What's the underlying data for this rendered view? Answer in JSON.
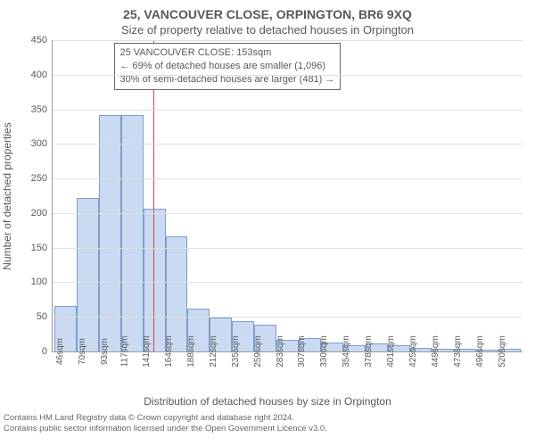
{
  "chart": {
    "type": "histogram",
    "title": "25, VANCOUVER CLOSE, ORPINGTON, BR6 9XQ",
    "subtitle": "Size of property relative to detached houses in Orpington",
    "ylabel": "Number of detached properties",
    "xlabel": "Distribution of detached houses by size in Orpington",
    "ylim": [
      0,
      450
    ],
    "ytick_step": 50,
    "yticks": [
      0,
      50,
      100,
      150,
      200,
      250,
      300,
      350,
      400,
      450
    ],
    "categories": [
      "46sqm",
      "70sqm",
      "93sqm",
      "117sqm",
      "141sqm",
      "164sqm",
      "188sqm",
      "212sqm",
      "235sqm",
      "259sqm",
      "283sqm",
      "307sqm",
      "330sqm",
      "354sqm",
      "378sqm",
      "401sqm",
      "425sqm",
      "449sqm",
      "473sqm",
      "496sqm",
      "520sqm"
    ],
    "values": [
      65,
      220,
      340,
      340,
      205,
      165,
      60,
      48,
      42,
      38,
      15,
      18,
      12,
      8,
      10,
      8,
      4,
      2,
      2,
      1,
      2
    ],
    "bar_fill": "#c9daf2",
    "bar_stroke": "#7f9cc9",
    "grid_color": "#e0e0e0",
    "axis_color": "#999999",
    "background_color": "#ffffff",
    "text_color": "#595959",
    "marker": {
      "value_sqm": 153,
      "color": "#d94040",
      "position_pct": 21.5
    },
    "info_box": {
      "left_pct": 13,
      "top_pct": 1,
      "line1": "25 VANCOUVER CLOSE: 153sqm",
      "line2": "← 69% of detached houses are smaller (1,096)",
      "line3": "30% of semi-detached houses are larger (481) →"
    },
    "title_fontsize": 14,
    "subtitle_fontsize": 13,
    "label_fontsize": 12,
    "tick_fontsize": 11
  },
  "footer": {
    "line1": "Contains HM Land Registry data © Crown copyright and database right 2024.",
    "line2": "Contains public sector information licensed under the Open Government Licence v3.0."
  }
}
